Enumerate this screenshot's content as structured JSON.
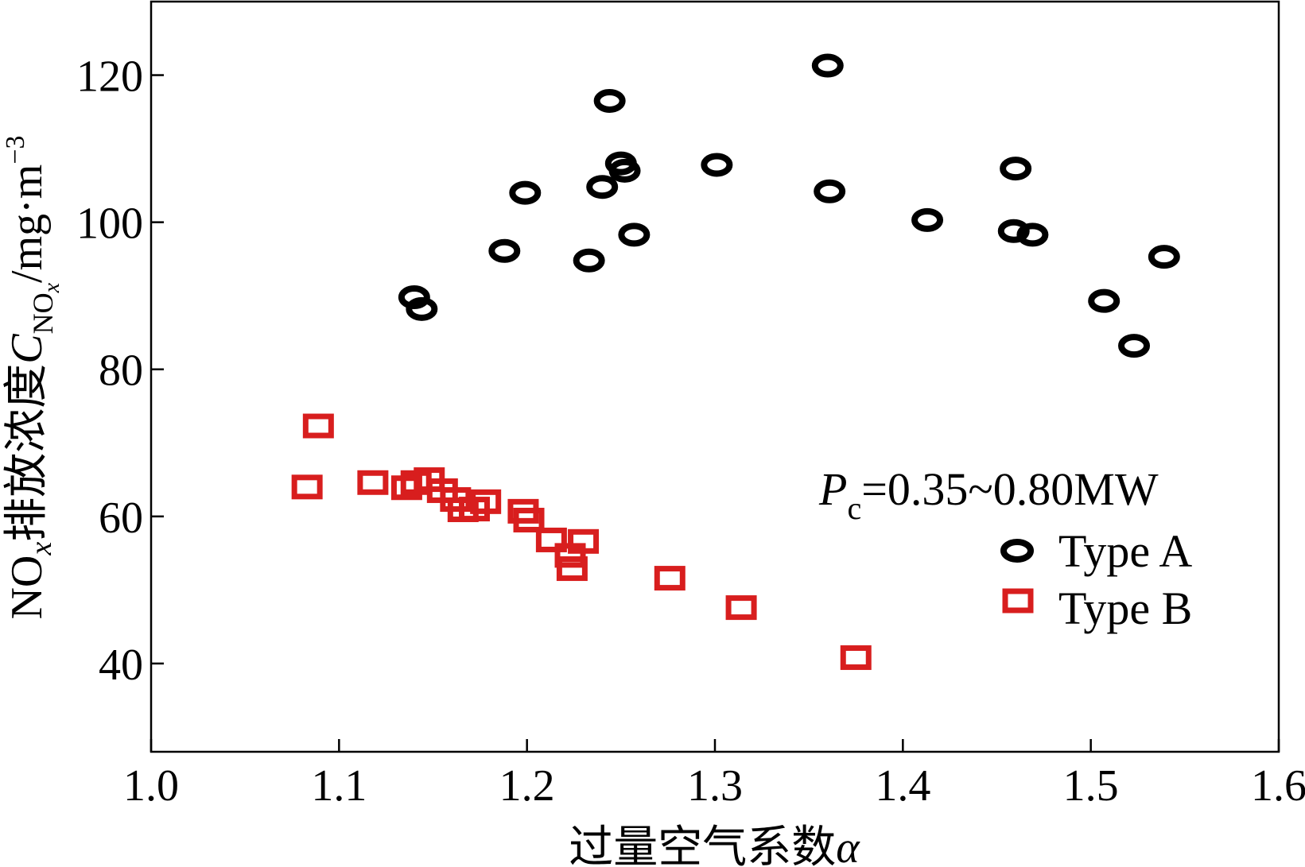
{
  "chart_data": {
    "type": "scatter",
    "xlabel": {
      "main": "过量空气系数",
      "var": "α"
    },
    "ylabel": {
      "prefix": "NO",
      "prefix_sub": "x",
      "main": "排放浓度",
      "var": "C",
      "var_sub": "NO",
      "var_sub_sub": "x",
      "unit": "/mg·m",
      "unit_sup": "−3"
    },
    "xlim": [
      1.0,
      1.6
    ],
    "ylim": [
      28,
      130
    ],
    "xticks": [
      1.0,
      1.1,
      1.2,
      1.3,
      1.4,
      1.5,
      1.6
    ],
    "xtick_labels": [
      "1.0",
      "1.1",
      "1.2",
      "1.3",
      "1.4",
      "1.5",
      "1.6"
    ],
    "yticks": [
      40,
      60,
      80,
      100,
      120
    ],
    "ytick_labels": [
      "40",
      "60",
      "80",
      "100",
      "120"
    ],
    "grid": false,
    "legend_position": "right",
    "annotation": {
      "var": "P",
      "sub": "c",
      "text": "=0.35~0.80MW"
    },
    "series": [
      {
        "name": "Type A",
        "marker": "circle",
        "color": "#000000",
        "points": [
          [
            1.14,
            89.8
          ],
          [
            1.144,
            88.2
          ],
          [
            1.188,
            96.1
          ],
          [
            1.199,
            104.0
          ],
          [
            1.233,
            94.8
          ],
          [
            1.24,
            104.8
          ],
          [
            1.244,
            116.5
          ],
          [
            1.25,
            108.0
          ],
          [
            1.252,
            107.0
          ],
          [
            1.257,
            98.3
          ],
          [
            1.301,
            107.8
          ],
          [
            1.36,
            121.3
          ],
          [
            1.361,
            104.2
          ],
          [
            1.413,
            100.3
          ],
          [
            1.459,
            98.8
          ],
          [
            1.46,
            107.3
          ],
          [
            1.469,
            98.3
          ],
          [
            1.507,
            89.3
          ],
          [
            1.523,
            83.2
          ],
          [
            1.539,
            95.3
          ]
        ]
      },
      {
        "name": "Type B",
        "marker": "square",
        "color": "#d81e1e",
        "points": [
          [
            1.083,
            64.0
          ],
          [
            1.089,
            72.3
          ],
          [
            1.118,
            64.6
          ],
          [
            1.136,
            63.9
          ],
          [
            1.141,
            64.6
          ],
          [
            1.148,
            65.0
          ],
          [
            1.155,
            63.5
          ],
          [
            1.162,
            62.3
          ],
          [
            1.166,
            60.9
          ],
          [
            1.172,
            61.0
          ],
          [
            1.178,
            62.0
          ],
          [
            1.198,
            60.7
          ],
          [
            1.201,
            59.5
          ],
          [
            1.213,
            56.8
          ],
          [
            1.223,
            54.7
          ],
          [
            1.224,
            52.9
          ],
          [
            1.23,
            56.6
          ],
          [
            1.276,
            51.6
          ],
          [
            1.314,
            47.6
          ],
          [
            1.375,
            40.8
          ]
        ]
      }
    ]
  }
}
